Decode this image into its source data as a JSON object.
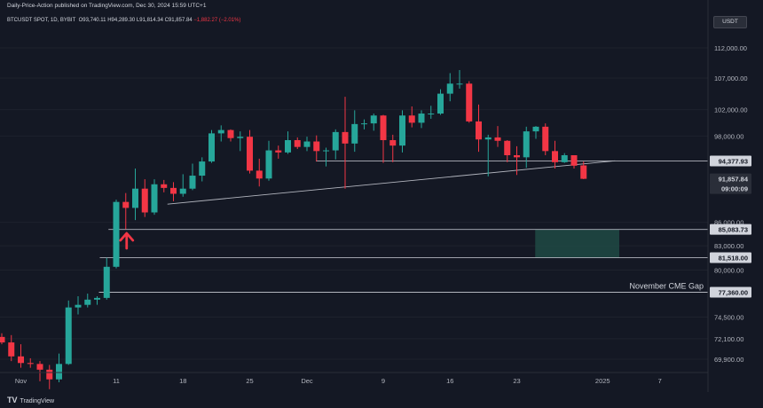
{
  "header": {
    "published": "Daily-Price-Action published on TradingView.com, Dec 30, 2024 15:59 UTC+1",
    "symbol": "BTCUSDT SPOT, 1D, BYBIT",
    "open": "O93,740.11",
    "high": "H94,289.30",
    "low": "L91,814.34",
    "close": "C91,857.84",
    "change": "−1,882.27 (−2.01%)"
  },
  "currency": "USDT",
  "footer": {
    "logo_mark": "TV",
    "logo_text": "TradingView"
  },
  "colors": {
    "up": "#26a69a",
    "down": "#f23645",
    "zone": "#1f4a44",
    "arrow": "#f23645",
    "line": "#b2b5be"
  },
  "chart_data": {
    "type": "candlestick",
    "title": "BTCUSDT SPOT, 1D, BYBIT",
    "y_axis": {
      "scale": "log",
      "ticks": [
        {
          "label": "112,000.00",
          "value": 112000
        },
        {
          "label": "107,000.00",
          "value": 107000
        },
        {
          "label": "102,000.00",
          "value": 102000
        },
        {
          "label": "98,000.00",
          "value": 98000
        },
        {
          "label": "86,000.00",
          "value": 86000
        },
        {
          "label": "83,000.00",
          "value": 83000
        },
        {
          "label": "80,000.00",
          "value": 80000
        },
        {
          "label": "74,500.00",
          "value": 74500
        },
        {
          "label": "72,100.00",
          "value": 72100
        },
        {
          "label": "69,900.00",
          "value": 69900
        }
      ]
    },
    "x_axis": {
      "ticks": [
        {
          "label": "Nov",
          "date": "2024-11-01"
        },
        {
          "label": "11",
          "date": "2024-11-11"
        },
        {
          "label": "18",
          "date": "2024-11-18"
        },
        {
          "label": "25",
          "date": "2024-11-25"
        },
        {
          "label": "Dec",
          "date": "2024-12-01"
        },
        {
          "label": "9",
          "date": "2024-12-09"
        },
        {
          "label": "16",
          "date": "2024-12-16"
        },
        {
          "label": "23",
          "date": "2024-12-23"
        },
        {
          "label": "2025",
          "date": "2025-01-01"
        },
        {
          "label": "7",
          "date": "2025-01-07"
        }
      ]
    },
    "price_labels": [
      {
        "label": "94,377.93",
        "value": 94378,
        "style": "line"
      },
      {
        "label": "91,857.84",
        "value": 91858,
        "style": "current"
      },
      {
        "label": "09:00:09",
        "style": "countdown"
      },
      {
        "label": "85,083.73",
        "value": 85084,
        "style": "line"
      },
      {
        "label": "81,518.00",
        "value": 81518,
        "style": "line"
      },
      {
        "label": "77,360.00",
        "value": 77360,
        "style": "line"
      }
    ],
    "candles": [
      {
        "date": "2024-10-30",
        "o": 72300,
        "h": 72700,
        "l": 71500,
        "c": 71700
      },
      {
        "date": "2024-10-31",
        "o": 71700,
        "h": 72500,
        "l": 69700,
        "c": 70200
      },
      {
        "date": "2024-11-01",
        "o": 70200,
        "h": 71500,
        "l": 69000,
        "c": 69500
      },
      {
        "date": "2024-11-02",
        "o": 69500,
        "h": 70000,
        "l": 69000,
        "c": 69400
      },
      {
        "date": "2024-11-03",
        "o": 69400,
        "h": 69700,
        "l": 67600,
        "c": 68800
      },
      {
        "date": "2024-11-04",
        "o": 68800,
        "h": 69300,
        "l": 66800,
        "c": 67800
      },
      {
        "date": "2024-11-05",
        "o": 67800,
        "h": 70500,
        "l": 67500,
        "c": 69400
      },
      {
        "date": "2024-11-06",
        "o": 69400,
        "h": 76400,
        "l": 69300,
        "c": 75600
      },
      {
        "date": "2024-11-07",
        "o": 75600,
        "h": 76900,
        "l": 74800,
        "c": 75900
      },
      {
        "date": "2024-11-08",
        "o": 75900,
        "h": 77200,
        "l": 75600,
        "c": 76500
      },
      {
        "date": "2024-11-09",
        "o": 76500,
        "h": 76900,
        "l": 75900,
        "c": 76700
      },
      {
        "date": "2024-11-10",
        "o": 76700,
        "h": 81500,
        "l": 76500,
        "c": 80400
      },
      {
        "date": "2024-11-11",
        "o": 80400,
        "h": 89000,
        "l": 80200,
        "c": 88700
      },
      {
        "date": "2024-11-12",
        "o": 88700,
        "h": 89900,
        "l": 85100,
        "c": 87900
      },
      {
        "date": "2024-11-13",
        "o": 87900,
        "h": 93300,
        "l": 86300,
        "c": 90500
      },
      {
        "date": "2024-11-14",
        "o": 90500,
        "h": 91800,
        "l": 86700,
        "c": 87300
      },
      {
        "date": "2024-11-15",
        "o": 87300,
        "h": 91800,
        "l": 87000,
        "c": 91100
      },
      {
        "date": "2024-11-16",
        "o": 91100,
        "h": 91700,
        "l": 90000,
        "c": 90600
      },
      {
        "date": "2024-11-17",
        "o": 90600,
        "h": 91400,
        "l": 88800,
        "c": 89800
      },
      {
        "date": "2024-11-18",
        "o": 89800,
        "h": 92500,
        "l": 89400,
        "c": 90500
      },
      {
        "date": "2024-11-19",
        "o": 90500,
        "h": 94000,
        "l": 90300,
        "c": 92300
      },
      {
        "date": "2024-11-20",
        "o": 92300,
        "h": 94900,
        "l": 91500,
        "c": 94300
      },
      {
        "date": "2024-11-21",
        "o": 94300,
        "h": 98900,
        "l": 94100,
        "c": 98400
      },
      {
        "date": "2024-11-22",
        "o": 98400,
        "h": 99600,
        "l": 97200,
        "c": 98900
      },
      {
        "date": "2024-11-23",
        "o": 98900,
        "h": 99000,
        "l": 97200,
        "c": 97700
      },
      {
        "date": "2024-11-24",
        "o": 97700,
        "h": 98700,
        "l": 95800,
        "c": 97900
      },
      {
        "date": "2024-11-25",
        "o": 97900,
        "h": 98900,
        "l": 92600,
        "c": 93000
      },
      {
        "date": "2024-11-26",
        "o": 93000,
        "h": 94700,
        "l": 90800,
        "c": 91900
      },
      {
        "date": "2024-11-27",
        "o": 91900,
        "h": 97300,
        "l": 91600,
        "c": 95900
      },
      {
        "date": "2024-11-28",
        "o": 95900,
        "h": 96600,
        "l": 94700,
        "c": 95600
      },
      {
        "date": "2024-11-29",
        "o": 95600,
        "h": 98700,
        "l": 95400,
        "c": 97400
      },
      {
        "date": "2024-11-30",
        "o": 97400,
        "h": 97800,
        "l": 96100,
        "c": 96400
      },
      {
        "date": "2024-12-01",
        "o": 96400,
        "h": 97900,
        "l": 95800,
        "c": 97200
      },
      {
        "date": "2024-12-02",
        "o": 97200,
        "h": 98100,
        "l": 94300,
        "c": 95800
      },
      {
        "date": "2024-12-03",
        "o": 95800,
        "h": 96300,
        "l": 93600,
        "c": 95900
      },
      {
        "date": "2024-12-04",
        "o": 95900,
        "h": 99000,
        "l": 94600,
        "c": 98600
      },
      {
        "date": "2024-12-05",
        "o": 98600,
        "h": 104000,
        "l": 90500,
        "c": 96900
      },
      {
        "date": "2024-12-06",
        "o": 96900,
        "h": 101900,
        "l": 95700,
        "c": 99800
      },
      {
        "date": "2024-12-07",
        "o": 99800,
        "h": 100500,
        "l": 99000,
        "c": 99900
      },
      {
        "date": "2024-12-08",
        "o": 99900,
        "h": 101400,
        "l": 98800,
        "c": 101100
      },
      {
        "date": "2024-12-09",
        "o": 101100,
        "h": 101200,
        "l": 94100,
        "c": 97400
      },
      {
        "date": "2024-12-10",
        "o": 97400,
        "h": 98200,
        "l": 94200,
        "c": 96600
      },
      {
        "date": "2024-12-11",
        "o": 96600,
        "h": 101900,
        "l": 95600,
        "c": 101100
      },
      {
        "date": "2024-12-12",
        "o": 101100,
        "h": 102500,
        "l": 99300,
        "c": 100000
      },
      {
        "date": "2024-12-13",
        "o": 100000,
        "h": 101900,
        "l": 99200,
        "c": 101400
      },
      {
        "date": "2024-12-14",
        "o": 101400,
        "h": 102600,
        "l": 100600,
        "c": 101400
      },
      {
        "date": "2024-12-15",
        "o": 101400,
        "h": 105200,
        "l": 101200,
        "c": 104500
      },
      {
        "date": "2024-12-16",
        "o": 104500,
        "h": 107800,
        "l": 103300,
        "c": 106100
      },
      {
        "date": "2024-12-17",
        "o": 106100,
        "h": 108300,
        "l": 105300,
        "c": 106100
      },
      {
        "date": "2024-12-18",
        "o": 106100,
        "h": 106500,
        "l": 100000,
        "c": 100200
      },
      {
        "date": "2024-12-19",
        "o": 100200,
        "h": 102800,
        "l": 95700,
        "c": 97500
      },
      {
        "date": "2024-12-20",
        "o": 97500,
        "h": 98200,
        "l": 92200,
        "c": 97800
      },
      {
        "date": "2024-12-21",
        "o": 97800,
        "h": 99500,
        "l": 96400,
        "c": 97300
      },
      {
        "date": "2024-12-22",
        "o": 97300,
        "h": 97400,
        "l": 94200,
        "c": 95200
      },
      {
        "date": "2024-12-23",
        "o": 95200,
        "h": 96500,
        "l": 92400,
        "c": 94900
      },
      {
        "date": "2024-12-24",
        "o": 94900,
        "h": 99400,
        "l": 93400,
        "c": 98700
      },
      {
        "date": "2024-12-25",
        "o": 98700,
        "h": 99500,
        "l": 97600,
        "c": 99400
      },
      {
        "date": "2024-12-26",
        "o": 99400,
        "h": 99900,
        "l": 95200,
        "c": 95800
      },
      {
        "date": "2024-12-27",
        "o": 95800,
        "h": 97300,
        "l": 93300,
        "c": 94200
      },
      {
        "date": "2024-12-28",
        "o": 94200,
        "h": 95500,
        "l": 94100,
        "c": 95200
      },
      {
        "date": "2024-12-29",
        "o": 95200,
        "h": 95200,
        "l": 93300,
        "c": 93700
      },
      {
        "date": "2024-12-30",
        "o": 93740,
        "h": 94289,
        "l": 91814,
        "c": 91858
      }
    ],
    "annotations": [
      {
        "type": "text",
        "label": "November CME Gap",
        "value": 77360
      }
    ]
  }
}
